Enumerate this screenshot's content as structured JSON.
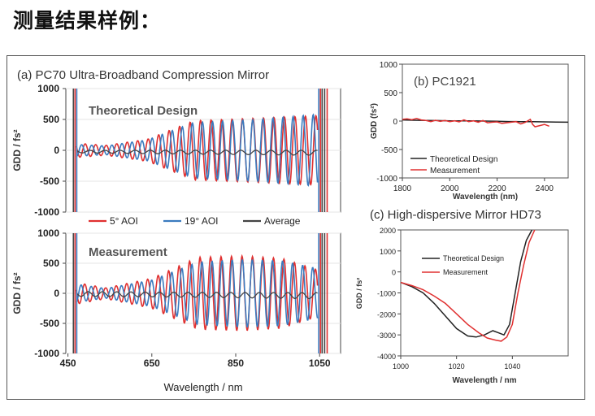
{
  "page": {
    "title": "测量结果样例："
  },
  "chart_data": [
    {
      "type": "line",
      "title": "(a)  PC70 Ultra-Broadband Compression Mirror",
      "subtitle": "Theoretical Design",
      "ylabel": "GDD / fs²",
      "ylim": [
        -1000,
        1000
      ],
      "yticks": [
        "1000",
        "500",
        "0",
        "-500",
        "-1000"
      ],
      "yticks_values": [
        1000,
        500,
        0,
        -500,
        -1000
      ],
      "legend": [
        {
          "name": "5° AOI",
          "color": "#e03030"
        },
        {
          "name": "19° AOI",
          "color": "#3a7bbf"
        },
        {
          "name": "Average",
          "color": "#444444"
        }
      ],
      "series": [
        {
          "name": "5° AOI",
          "color": "#e03030",
          "model": {
            "amp": [
              [
                460,
                120
              ],
              [
                540,
                80
              ],
              [
                640,
                180
              ],
              [
                750,
                480
              ],
              [
                900,
                520
              ],
              [
                1040,
                560
              ]
            ],
            "period": 25,
            "phase": 0,
            "offset": [
              [
                460,
                0
              ],
              [
                1060,
                0
              ]
            ]
          }
        },
        {
          "name": "19° AOI",
          "color": "#3a7bbf",
          "model": {
            "amp": [
              [
                460,
                100
              ],
              [
                540,
                70
              ],
              [
                640,
                170
              ],
              [
                750,
                450
              ],
              [
                900,
                500
              ],
              [
                1040,
                580
              ]
            ],
            "period": 24,
            "phase": 1.9,
            "offset": [
              [
                460,
                0
              ],
              [
                1060,
                0
              ]
            ]
          }
        },
        {
          "name": "Average",
          "color": "#444444",
          "model": {
            "amp": [
              [
                460,
                20
              ],
              [
                700,
                30
              ],
              [
                1040,
                40
              ]
            ],
            "period": 36,
            "phase": 0.5,
            "offset": [
              [
                460,
                -20
              ],
              [
                1060,
                -40
              ]
            ]
          }
        }
      ]
    },
    {
      "type": "line",
      "subtitle": "Measurement",
      "ylabel": "GDD / fs²",
      "xlabel": "Wavelength / nm",
      "xlim": [
        450,
        1100
      ],
      "ylim": [
        -1000,
        1000
      ],
      "xticks": [
        "450",
        "650",
        "850",
        "1050"
      ],
      "xticks_values": [
        450,
        650,
        850,
        1050
      ],
      "yticks": [
        "1000",
        "500",
        "0",
        "-500",
        "-1000"
      ],
      "yticks_values": [
        1000,
        500,
        0,
        -500,
        -1000
      ],
      "series": [
        {
          "name": "5° AOI",
          "color": "#e03030",
          "model": {
            "amp": [
              [
                470,
                180
              ],
              [
                540,
                90
              ],
              [
                650,
                250
              ],
              [
                760,
                600
              ],
              [
                870,
                620
              ],
              [
                960,
                580
              ],
              [
                1040,
                400
              ]
            ],
            "period": 25,
            "phase": 0.3,
            "offset": [
              [
                460,
                0
              ],
              [
                1060,
                0
              ]
            ]
          }
        },
        {
          "name": "19° AOI",
          "color": "#3a7bbf",
          "model": {
            "amp": [
              [
                470,
                150
              ],
              [
                540,
                80
              ],
              [
                650,
                220
              ],
              [
                760,
                520
              ],
              [
                870,
                560
              ],
              [
                960,
                540
              ],
              [
                1040,
                420
              ]
            ],
            "period": 24,
            "phase": 2.2,
            "offset": [
              [
                460,
                0
              ],
              [
                1060,
                0
              ]
            ]
          }
        },
        {
          "name": "Average",
          "color": "#444444",
          "model": {
            "amp": [
              [
                470,
                40
              ],
              [
                700,
                40
              ],
              [
                1040,
                50
              ]
            ],
            "period": 34,
            "phase": 0.8,
            "offset": [
              [
                460,
                -10
              ],
              [
                1060,
                -40
              ]
            ]
          }
        }
      ]
    },
    {
      "type": "line",
      "title": "(b) PC1921",
      "ylabel": "GDD (fs²)",
      "xlabel": "Wavelength (nm)",
      "xlim": [
        1800,
        2500
      ],
      "ylim": [
        -1000,
        1000
      ],
      "xticks": [
        "1800",
        "2000",
        "2200",
        "2400"
      ],
      "xticks_values": [
        1800,
        2000,
        2200,
        2400
      ],
      "yticks": [
        "1000",
        "500",
        "0",
        "-500",
        "-1000"
      ],
      "yticks_values": [
        1000,
        500,
        0,
        -500,
        -1000
      ],
      "legend": [
        {
          "name": "Theoretical Design",
          "color": "#222222"
        },
        {
          "name": "Measurement",
          "color": "#e03030"
        }
      ],
      "series": [
        {
          "name": "Theoretical Design",
          "color": "#222222",
          "x": [
            1800,
            1850,
            1900,
            1950,
            2000,
            2050,
            2100,
            2150,
            2200,
            2250,
            2300,
            2350,
            2400,
            2450,
            2500
          ],
          "y": [
            20,
            15,
            10,
            8,
            5,
            5,
            3,
            0,
            -5,
            -8,
            -10,
            -12,
            -15,
            -18,
            -20
          ]
        },
        {
          "name": "Measurement",
          "color": "#e03030",
          "x": [
            1800,
            1820,
            1840,
            1860,
            1880,
            1900,
            1920,
            1940,
            1960,
            1980,
            2000,
            2020,
            2040,
            2060,
            2080,
            2100,
            2120,
            2140,
            2160,
            2180,
            2200,
            2220,
            2240,
            2260,
            2280,
            2300,
            2320,
            2340,
            2350,
            2360,
            2380,
            2400,
            2420
          ],
          "y": [
            30,
            40,
            25,
            45,
            20,
            10,
            -10,
            15,
            -5,
            10,
            -10,
            5,
            -15,
            20,
            -10,
            5,
            -20,
            10,
            -30,
            -20,
            -15,
            -40,
            -30,
            -20,
            -10,
            -50,
            -20,
            30,
            -60,
            -100,
            -80,
            -60,
            -90
          ]
        }
      ]
    },
    {
      "type": "line",
      "title": "(c) High-dispersive Mirror HD73",
      "ylabel": "GDD / fs²",
      "xlabel": "Wavelength / nm",
      "xlim": [
        1000,
        1060
      ],
      "ylim": [
        -4000,
        2000
      ],
      "xticks": [
        "1000",
        "1020",
        "1040"
      ],
      "xticks_values": [
        1000,
        1020,
        1040
      ],
      "yticks": [
        "2000",
        "1000",
        "0",
        "-1000",
        "-2000",
        "-3000",
        "-4000"
      ],
      "yticks_values": [
        2000,
        1000,
        0,
        -1000,
        -2000,
        -3000,
        -4000
      ],
      "legend": [
        {
          "name": "Theoretical Design",
          "color": "#222222"
        },
        {
          "name": "Measurement",
          "color": "#e03030"
        }
      ],
      "series": [
        {
          "name": "Theoretical Design",
          "color": "#222222",
          "x": [
            1000,
            1004,
            1008,
            1012,
            1016,
            1020,
            1024,
            1027,
            1030,
            1033,
            1035,
            1037,
            1039,
            1041,
            1043,
            1045,
            1047
          ],
          "y": [
            -500,
            -700,
            -1000,
            -1500,
            -2100,
            -2700,
            -3050,
            -3100,
            -3000,
            -2800,
            -2900,
            -3000,
            -2500,
            -1000,
            500,
            1500,
            2100
          ]
        },
        {
          "name": "Measurement",
          "color": "#e03030",
          "x": [
            1000,
            1004,
            1008,
            1012,
            1016,
            1020,
            1024,
            1028,
            1031,
            1034,
            1036,
            1038,
            1040,
            1042,
            1044,
            1046,
            1048
          ],
          "y": [
            -500,
            -650,
            -850,
            -1150,
            -1500,
            -2000,
            -2500,
            -2900,
            -3150,
            -3250,
            -3300,
            -3100,
            -2500,
            -1000,
            300,
            1400,
            2100
          ]
        }
      ]
    }
  ]
}
